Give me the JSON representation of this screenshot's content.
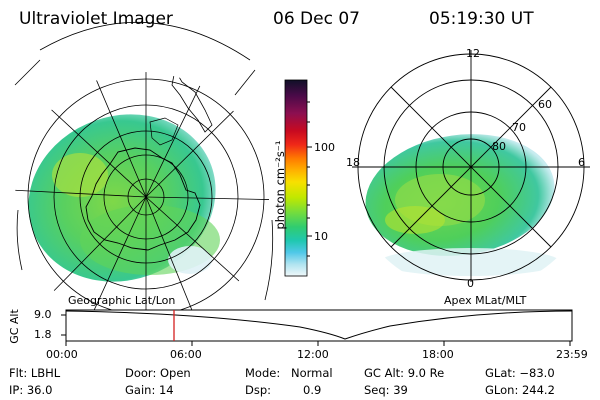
{
  "header": {
    "instrument": "Ultraviolet Imager",
    "date": "06 Dec 07",
    "time": "05:19:30 UT"
  },
  "colorbar": {
    "label_html": "photon cm",
    "units": "photon cm⁻²s⁻¹",
    "ticks": [
      "100",
      "10"
    ],
    "colors": [
      "#101028",
      "#3a0a40",
      "#7a0f50",
      "#b00a28",
      "#e81818",
      "#ff6a00",
      "#ffaa00",
      "#f6d800",
      "#c8e800",
      "#80e040",
      "#40d060",
      "#20c8a0",
      "#40c0e8",
      "#a8e0f0",
      "#e8f4f8"
    ]
  },
  "left_map": {
    "caption": "Geographic Lat/Lon"
  },
  "right_map": {
    "caption": "Apex MLat/MLT",
    "mlt_labels": [
      "12",
      "18",
      "6",
      "0"
    ],
    "lat_labels": [
      "60",
      "70",
      "80"
    ]
  },
  "altitude_strip": {
    "axis_label": "GC Alt",
    "y_ticks": [
      "9.0",
      "1.8"
    ],
    "time_ticks": [
      "00:00",
      "06:00",
      "12:00",
      "18:00",
      "23:59"
    ],
    "current_time_marker": "05:19:30"
  },
  "status": {
    "flt": "Flt: LBHL",
    "ip": "IP: 36.0",
    "door": "Door: Open",
    "gain": "Gain: 14",
    "mode_label": "Mode:",
    "mode": "Normal",
    "dsp_label": "Dsp:",
    "dsp": "0.9",
    "gc_alt": "GC Alt: 9.0 Re",
    "seq": "Seq: 39",
    "glat": "GLat: −83.0",
    "glon": "GLon: 244.2"
  }
}
